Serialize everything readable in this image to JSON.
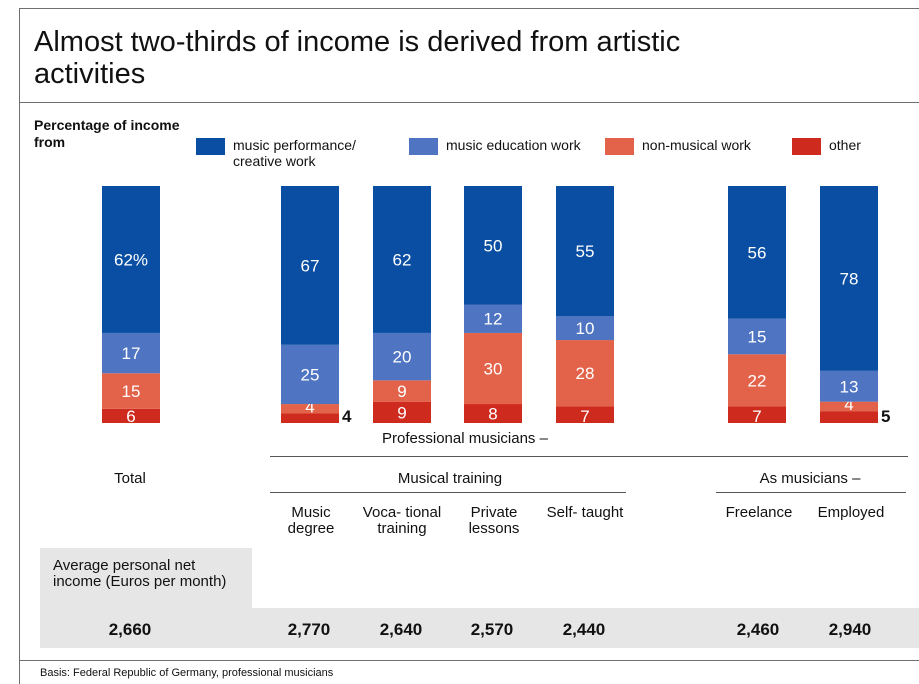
{
  "title": "Almost two-thirds of income is derived from artistic activities",
  "footnote": "Basis: Federal Republic of Germany, professional musicians",
  "colors": {
    "performance": "#0a4ea3",
    "education": "#4e74c2",
    "non_musical": "#e2634a",
    "other": "#cf2a1e"
  },
  "chart_data": {
    "type": "bar",
    "stacked": true,
    "orientation": "vertical",
    "ylabel": "Percentage of income from",
    "ylim": [
      0,
      100
    ],
    "categories": [
      "Total",
      "Music degree",
      "Voca- tional training",
      "Private lessons",
      "Self- taught",
      "Freelance",
      "Employed"
    ],
    "series": [
      {
        "name": "music performance/ creative work",
        "values": [
          62,
          67,
          62,
          50,
          55,
          56,
          78
        ]
      },
      {
        "name": "music education work",
        "values": [
          17,
          25,
          20,
          12,
          10,
          15,
          13
        ]
      },
      {
        "name": "non-musical work",
        "values": [
          15,
          4,
          9,
          30,
          28,
          22,
          4
        ]
      },
      {
        "name": "other",
        "values": [
          6,
          4,
          9,
          8,
          7,
          7,
          5
        ]
      }
    ],
    "data_labels": [
      [
        "62%",
        "17",
        "15",
        "6"
      ],
      [
        "67",
        "25",
        "4",
        "4"
      ],
      [
        "62",
        "20",
        "9",
        "9"
      ],
      [
        "50",
        "12",
        "30",
        "8"
      ],
      [
        "55",
        "10",
        "28",
        "7"
      ],
      [
        "56",
        "15",
        "22",
        "7"
      ],
      [
        "78",
        "13",
        "4",
        "5"
      ]
    ],
    "outside_labels": [
      [
        false,
        false,
        false,
        false
      ],
      [
        false,
        false,
        false,
        true
      ],
      [
        false,
        false,
        false,
        false
      ],
      [
        false,
        false,
        false,
        false
      ],
      [
        false,
        false,
        false,
        false
      ],
      [
        false,
        false,
        false,
        false
      ],
      [
        false,
        false,
        false,
        true
      ]
    ],
    "legend_position": "top",
    "grid": false
  },
  "legend": {
    "items": [
      {
        "label": "music performance/ creative work",
        "color": "#0a4ea3"
      },
      {
        "label": "music education work",
        "color": "#4e74c2"
      },
      {
        "label": "non-musical work",
        "color": "#e2634a"
      },
      {
        "label": "other",
        "color": "#cf2a1e"
      }
    ]
  },
  "groups": {
    "professional": "Professional musicians –",
    "total": "Total",
    "training": "Musical training",
    "as_musicians": "As musicians –"
  },
  "cat_labels": [
    "Music degree",
    "Voca- tional training",
    "Private lessons",
    "Self- taught",
    "Freelance",
    "Employed"
  ],
  "income": {
    "label": "Average personal net income (Euros per month)",
    "values": [
      "2,660",
      "2,770",
      "2,640",
      "2,570",
      "2,440",
      "2,460",
      "2,940"
    ]
  }
}
